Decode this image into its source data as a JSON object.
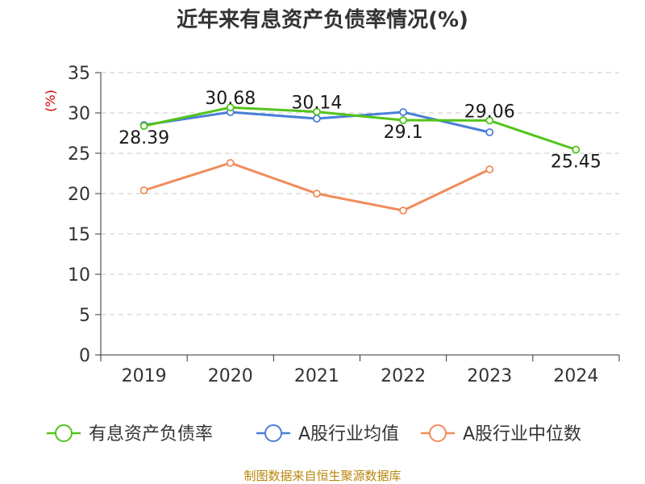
{
  "chart_data": {
    "type": "line",
    "title": "近年来有息资产负债率情况(%)",
    "ylabel": "(%)",
    "categories": [
      "2019",
      "2020",
      "2021",
      "2022",
      "2023",
      "2024"
    ],
    "ylim": [
      0,
      35
    ],
    "yticks": [
      0,
      5,
      10,
      15,
      20,
      25,
      30,
      35
    ],
    "grid": true,
    "legend_position": "bottom",
    "series": [
      {
        "name": "有息资产负债率",
        "color": "#52c41a",
        "values": [
          28.39,
          30.68,
          30.14,
          29.1,
          29.06,
          25.45
        ],
        "labels": [
          "28.39",
          "30.68",
          "30.14",
          "29.1",
          "29.06",
          "25.45"
        ]
      },
      {
        "name": "A股行业均值",
        "color": "#4a7fd6",
        "values": [
          28.5,
          30.1,
          29.3,
          30.1,
          27.6,
          null
        ]
      },
      {
        "name": "A股行业中位数",
        "color": "#f08c5a",
        "values": [
          20.4,
          23.8,
          20.0,
          17.9,
          23.0,
          null
        ]
      }
    ],
    "source": "制图数据来自恒生聚源数据库"
  }
}
